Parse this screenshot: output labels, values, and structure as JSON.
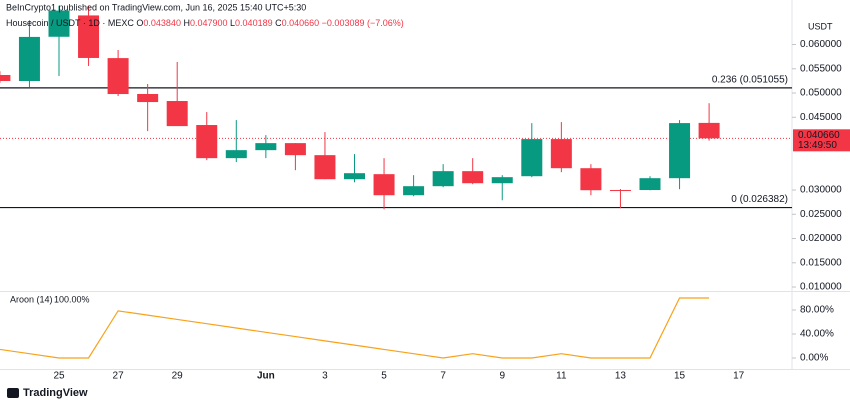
{
  "header": {
    "byline": "BeInCrypto1 published on TradingView.com, Jun 16, 2025 15:40 UTC+5:30",
    "brand": "TradingView"
  },
  "chart_data": [
    {
      "type": "candlestick",
      "legend": {
        "symbol": "Housecoin / USDT · 1D · MEXC",
        "items": [
          {
            "key": "O",
            "value": "0.043840"
          },
          {
            "key": "H",
            "value": "0.047900"
          },
          {
            "key": "L",
            "value": "0.040189"
          },
          {
            "key": "C",
            "value": "0.040660"
          }
        ],
        "change": "−0.003089 (−7.06%)"
      },
      "axis_unit": "USDT",
      "categories": [
        null,
        null,
        "25",
        null,
        "27",
        null,
        "29",
        null,
        null,
        "Jun",
        null,
        "3",
        null,
        "5",
        null,
        "7",
        null,
        "9",
        null,
        "11",
        null,
        "13",
        null,
        "15",
        null,
        "17"
      ],
      "open": [
        0.05372,
        0.05248,
        0.0616,
        0.066,
        0.0572,
        0.0498,
        0.04835,
        0.0434,
        0.03657,
        0.03822,
        0.03967,
        0.03719,
        0.03223,
        0.03327,
        0.02893,
        0.03079,
        0.03389,
        0.0314,
        0.03285,
        0.0405,
        0.0345,
        0.03,
        0.03,
        0.03244,
        0.04384,
        null
      ],
      "high": [
        0.0545,
        0.065,
        0.068,
        0.068,
        0.05888,
        0.05186,
        0.0564,
        0.04607,
        0.04442,
        0.04132,
        0.03967,
        0.04194,
        0.0374,
        0.03657,
        0.03306,
        0.03533,
        0.03657,
        0.03306,
        0.0438,
        0.04401,
        0.03533,
        0.0302,
        0.03285,
        0.04442,
        0.0479,
        null
      ],
      "low": [
        0.0521,
        0.05124,
        0.0535,
        0.05558,
        0.04938,
        0.04215,
        0.0432,
        0.03616,
        0.03575,
        0.03657,
        0.03409,
        0.03223,
        0.03161,
        0.02603,
        0.02872,
        0.03058,
        0.0312,
        0.02789,
        0.03265,
        0.03368,
        0.02893,
        0.02624,
        0.02996,
        0.03017,
        0.040189,
        null
      ],
      "close": [
        0.05248,
        0.06157,
        0.067,
        0.05723,
        0.04979,
        0.04814,
        0.04318,
        0.03657,
        0.03822,
        0.03967,
        0.03719,
        0.03223,
        0.03347,
        0.02893,
        0.03079,
        0.03389,
        0.0314,
        0.03265,
        0.0405,
        0.0345,
        0.02996,
        0.0299,
        0.03244,
        0.0438,
        0.04066,
        null
      ],
      "up_color": "#089981",
      "down_color": "#f23645",
      "ylim": [
        0.00918,
        0.06918
      ],
      "yticks": [
        {
          "value": 0.06,
          "label": "0.060000"
        },
        {
          "value": 0.055,
          "label": "0.055000"
        },
        {
          "value": 0.05,
          "label": "0.050000"
        },
        {
          "value": 0.045,
          "label": "0.045000"
        },
        {
          "value": 0.03,
          "label": "0.030000"
        },
        {
          "value": 0.025,
          "label": "0.025000"
        },
        {
          "value": 0.02,
          "label": "0.020000"
        },
        {
          "value": 0.015,
          "label": "0.015000"
        },
        {
          "value": 0.01,
          "label": "0.010000"
        }
      ],
      "levels": [
        {
          "label": "0.236 (0.051055)",
          "value": 0.051055
        },
        {
          "label": "0 (0.026382)",
          "value": 0.026382
        }
      ],
      "last_price": {
        "value": 0.04066,
        "label": "0.040660",
        "countdown": "13:49:50"
      }
    },
    {
      "type": "line",
      "title": "Aroon (14)",
      "value_label": "100.00%",
      "color": "#f7a21b",
      "values": [
        14.29,
        7.14,
        0,
        0,
        78.57,
        71.43,
        64.29,
        57.14,
        50,
        42.86,
        35.71,
        28.57,
        21.43,
        14.29,
        7.14,
        0,
        7.14,
        0,
        0,
        7.14,
        0,
        0,
        0,
        100,
        100,
        null
      ],
      "ylim": [
        -18.33,
        111.67
      ],
      "yticks": [
        {
          "value": 80,
          "label": "80.00%"
        },
        {
          "value": 40,
          "label": "40.00%"
        },
        {
          "value": 0,
          "label": "0.00%"
        }
      ]
    }
  ]
}
